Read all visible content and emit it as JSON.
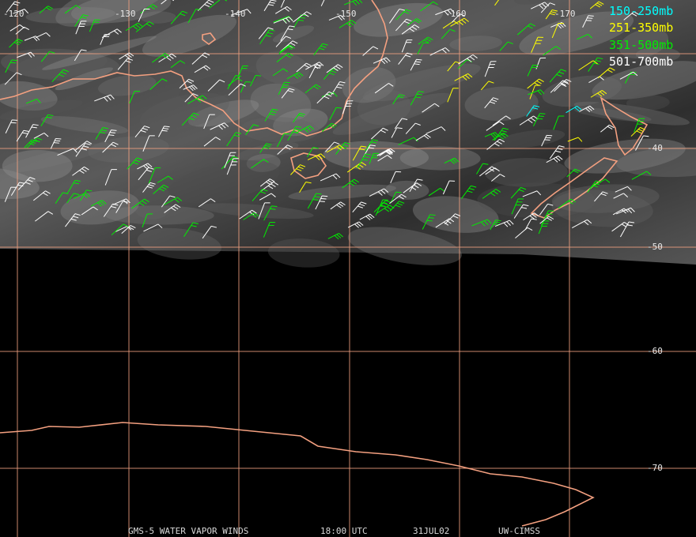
{
  "map": {
    "longitude_labels": [
      "-120",
      "-130",
      "-140",
      "-150",
      "-160",
      "-170"
    ],
    "latitude_labels": [
      "-40",
      "-50",
      "-60",
      "-70"
    ],
    "legend": [
      {
        "label": "150-250mb",
        "color": "#00ffff"
      },
      {
        "label": "251-350mb",
        "color": "#ffff00"
      },
      {
        "label": "351-500mb",
        "color": "#00ee00"
      },
      {
        "label": "501-700mb",
        "color": "#ffffff"
      }
    ],
    "footer": [
      "GMS-5 WATER VAPOR WINDS",
      "18:00 UTC",
      "31JUL02",
      "UW-CIMSS"
    ]
  }
}
